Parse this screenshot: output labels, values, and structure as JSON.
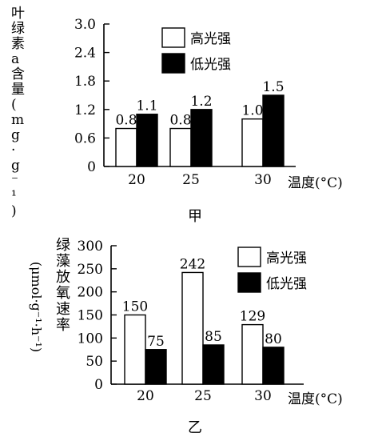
{
  "chart_data": [
    {
      "type": "bar",
      "caption": "甲",
      "ylabel": "叶绿素a含量(mg·g⁻¹)",
      "xlabel": "温度(°C)",
      "categories": [
        "20",
        "25",
        "30"
      ],
      "series": [
        {
          "name": "高光强",
          "values": [
            0.8,
            0.8,
            1.0
          ],
          "labels": [
            "0.8",
            "0.8",
            "1.0"
          ],
          "color": "#ffffff"
        },
        {
          "name": "低光强",
          "values": [
            1.1,
            1.2,
            1.5
          ],
          "labels": [
            "1.1",
            "1.2",
            "1.5"
          ],
          "color": "#000000"
        }
      ],
      "yticks": [
        "0",
        "0.6",
        "1.2",
        "1.8",
        "2.4",
        "3.0"
      ],
      "ylim": [
        0,
        3.0
      ],
      "legend": "top-center",
      "grid": false
    },
    {
      "type": "bar",
      "caption": "乙",
      "ylabel": "绿藻放氧速率",
      "yunit": "(μmol·g⁻¹·h⁻¹)",
      "xlabel": "温度(°C)",
      "categories": [
        "20",
        "25",
        "30"
      ],
      "series": [
        {
          "name": "高光强",
          "values": [
            150,
            242,
            129
          ],
          "labels": [
            "150",
            "242",
            "129"
          ],
          "color": "#ffffff"
        },
        {
          "name": "低光强",
          "values": [
            75,
            85,
            80
          ],
          "labels": [
            "75",
            "85",
            "80"
          ],
          "color": "#000000"
        }
      ],
      "yticks": [
        "0",
        "50",
        "100",
        "150",
        "200",
        "250",
        "300"
      ],
      "ylim": [
        0,
        300
      ],
      "legend": "top-right",
      "grid": false
    }
  ]
}
